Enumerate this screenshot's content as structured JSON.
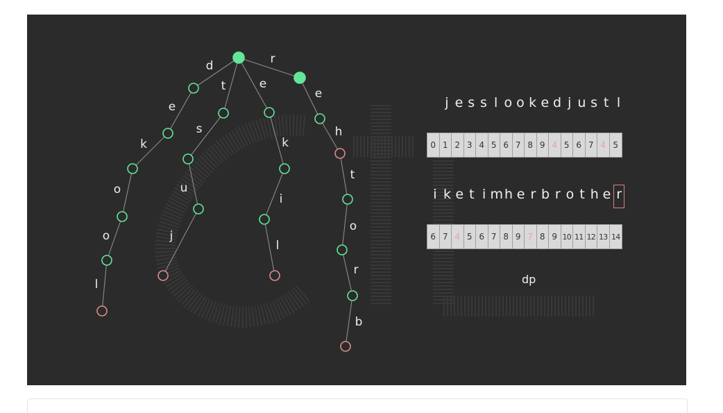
{
  "trie": {
    "nodes": [
      {
        "id": "root",
        "state": "filled"
      },
      {
        "id": "r",
        "state": "filled"
      },
      {
        "id": "d",
        "state": "open"
      },
      {
        "id": "de",
        "state": "open"
      },
      {
        "id": "dek",
        "state": "open"
      },
      {
        "id": "deko",
        "state": "open"
      },
      {
        "id": "dekoo",
        "state": "open"
      },
      {
        "id": "dekool",
        "state": "end"
      },
      {
        "id": "t",
        "state": "open"
      },
      {
        "id": "ts",
        "state": "open"
      },
      {
        "id": "tsu",
        "state": "open"
      },
      {
        "id": "tsuj",
        "state": "end"
      },
      {
        "id": "e",
        "state": "open"
      },
      {
        "id": "ek",
        "state": "open"
      },
      {
        "id": "eki",
        "state": "open"
      },
      {
        "id": "ekil",
        "state": "end"
      },
      {
        "id": "re",
        "state": "open"
      },
      {
        "id": "reh",
        "state": "end"
      },
      {
        "id": "reht",
        "state": "open"
      },
      {
        "id": "rehto",
        "state": "open"
      },
      {
        "id": "rehtor",
        "state": "open"
      },
      {
        "id": "rehtorb",
        "state": "end"
      }
    ],
    "edges": [
      {
        "from": "root",
        "to": "r",
        "label": "r"
      },
      {
        "from": "root",
        "to": "d",
        "label": "d"
      },
      {
        "from": "d",
        "to": "de",
        "label": "e"
      },
      {
        "from": "de",
        "to": "dek",
        "label": "k"
      },
      {
        "from": "dek",
        "to": "deko",
        "label": "o"
      },
      {
        "from": "deko",
        "to": "dekoo",
        "label": "o"
      },
      {
        "from": "dekoo",
        "to": "dekool",
        "label": "l"
      },
      {
        "from": "root",
        "to": "t",
        "label": "t"
      },
      {
        "from": "t",
        "to": "ts",
        "label": "s"
      },
      {
        "from": "ts",
        "to": "tsu",
        "label": "u"
      },
      {
        "from": "tsu",
        "to": "tsuj",
        "label": "j"
      },
      {
        "from": "root",
        "to": "e",
        "label": "e"
      },
      {
        "from": "e",
        "to": "ek",
        "label": "k"
      },
      {
        "from": "ek",
        "to": "eki",
        "label": "i"
      },
      {
        "from": "eki",
        "to": "ekil",
        "label": "l"
      },
      {
        "from": "r",
        "to": "re",
        "label": "e"
      },
      {
        "from": "re",
        "to": "reh",
        "label": "h"
      },
      {
        "from": "reh",
        "to": "reht",
        "label": "t"
      },
      {
        "from": "reht",
        "to": "rehto",
        "label": "o"
      },
      {
        "from": "rehto",
        "to": "rehtor",
        "label": "r"
      },
      {
        "from": "rehtor",
        "to": "rehtorb",
        "label": "b"
      }
    ]
  },
  "colors": {
    "filled": "#63e69a",
    "open": "#63e69a",
    "end": "#e08a8a",
    "highlight": "#e8a3a3",
    "cursor": "#e08080"
  },
  "row1": {
    "letters": [
      "j",
      "e",
      "s",
      "s",
      "l",
      "o",
      "o",
      "k",
      "e",
      "d",
      "j",
      "u",
      "s",
      "t",
      "l"
    ],
    "dp": [
      {
        "v": "0"
      },
      {
        "v": "1"
      },
      {
        "v": "2"
      },
      {
        "v": "3"
      },
      {
        "v": "4"
      },
      {
        "v": "5"
      },
      {
        "v": "6"
      },
      {
        "v": "7"
      },
      {
        "v": "8"
      },
      {
        "v": "9"
      },
      {
        "v": "4",
        "hl": true
      },
      {
        "v": "5"
      },
      {
        "v": "6"
      },
      {
        "v": "7"
      },
      {
        "v": "4",
        "hl": true
      },
      {
        "v": "5"
      }
    ]
  },
  "row2": {
    "letters": [
      "i",
      "k",
      "e",
      "t",
      "i",
      "m",
      "h",
      "e",
      "r",
      "b",
      "r",
      "o",
      "t",
      "h",
      "e",
      "r"
    ],
    "cursor_index": 15,
    "dp": [
      {
        "v": "6"
      },
      {
        "v": "7"
      },
      {
        "v": "4",
        "hl": true
      },
      {
        "v": "5"
      },
      {
        "v": "6"
      },
      {
        "v": "7"
      },
      {
        "v": "8"
      },
      {
        "v": "9"
      },
      {
        "v": "7",
        "hl": true
      },
      {
        "v": "8"
      },
      {
        "v": "9"
      },
      {
        "v": "10"
      },
      {
        "v": "11"
      },
      {
        "v": "12"
      },
      {
        "v": "13"
      },
      {
        "v": "14"
      }
    ]
  },
  "caption": "dp"
}
